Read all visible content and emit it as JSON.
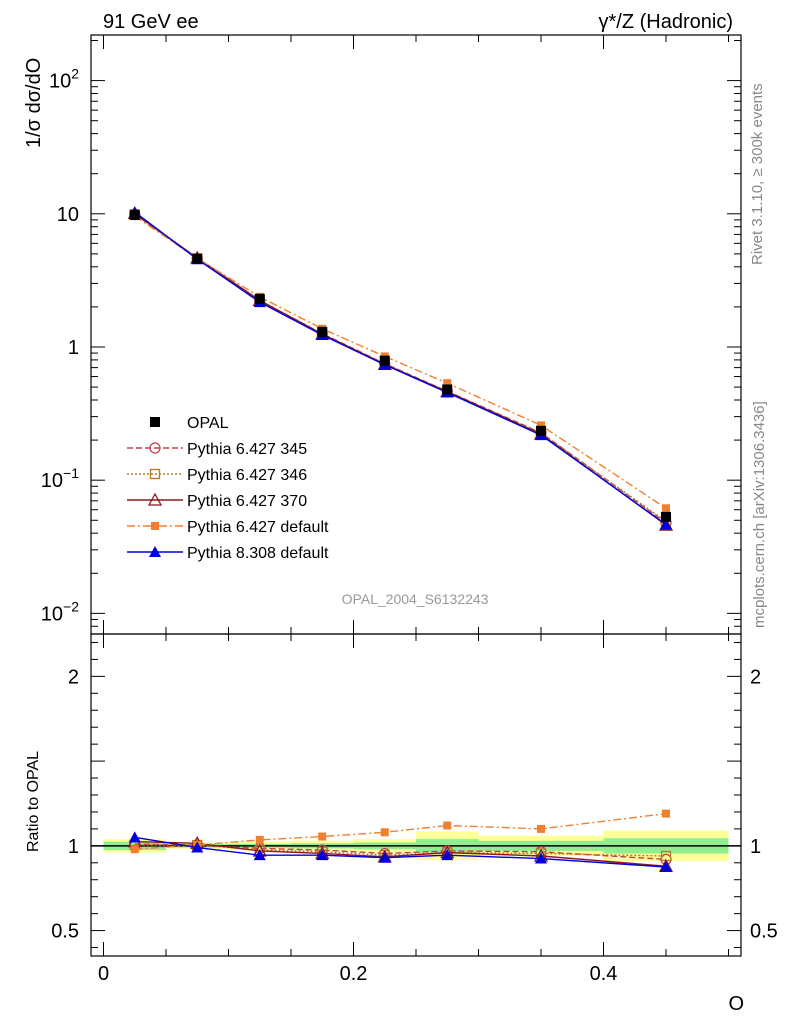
{
  "header": {
    "left": "91 GeV ee",
    "right": "γ*/Z (Hadronic)"
  },
  "side": {
    "rivet": "Rivet 3.1.10, ≥ 300k events",
    "mcplots": "mcplots.cern.ch [arXiv:1306.3436]"
  },
  "chart_data": [
    {
      "type": "line",
      "panel": "main",
      "ylabel": "1/σ dσ/dO",
      "yscale": "log",
      "ylim": [
        0.007,
        220
      ],
      "xlim": [
        -0.01,
        0.51
      ],
      "watermark": "OPAL_2004_S6132243",
      "yticks": [
        {
          "value": 100,
          "base": "10",
          "exp": "2"
        },
        {
          "value": 10,
          "label": "10"
        },
        {
          "value": 1,
          "label": "1"
        },
        {
          "value": 0.1,
          "base": "10",
          "exp": "−1"
        },
        {
          "value": 0.01,
          "base": "10",
          "exp": "−2"
        }
      ],
      "legend_position": "middle-left",
      "x": [
        0.025,
        0.075,
        0.125,
        0.175,
        0.225,
        0.275,
        0.35,
        0.45
      ],
      "series": [
        {
          "name": "OPAL",
          "color": "#000000",
          "marker": "square-filled",
          "line": "none",
          "values": [
            9.8,
            4.6,
            2.3,
            1.3,
            0.79,
            0.48,
            0.235,
            0.053
          ]
        },
        {
          "name": "Pythia 6.427 345",
          "color": "#c04050",
          "marker": "circle-open",
          "line": "dashed",
          "values": [
            9.95,
            4.62,
            2.23,
            1.26,
            0.75,
            0.465,
            0.227,
            0.048
          ]
        },
        {
          "name": "Pythia 6.427 346",
          "color": "#b8782a",
          "marker": "square-open",
          "line": "dotted",
          "values": [
            9.9,
            4.62,
            2.23,
            1.25,
            0.745,
            0.46,
            0.225,
            0.049
          ]
        },
        {
          "name": "Pythia 6.427 370",
          "color": "#8b1a1a",
          "marker": "triangle-open",
          "line": "solid",
          "values": [
            10.05,
            4.66,
            2.24,
            1.25,
            0.74,
            0.462,
            0.222,
            0.046
          ]
        },
        {
          "name": "Pythia 6.427 default",
          "color": "#f08030",
          "marker": "square-small",
          "line": "dashdot",
          "values": [
            9.6,
            4.62,
            2.38,
            1.37,
            0.85,
            0.535,
            0.258,
            0.0615
          ]
        },
        {
          "name": "Pythia 8.308 default",
          "color": "#0000dd",
          "marker": "triangle-filled",
          "line": "solid",
          "values": [
            10.3,
            4.56,
            2.17,
            1.23,
            0.735,
            0.455,
            0.218,
            0.0465
          ]
        }
      ]
    },
    {
      "type": "line",
      "panel": "ratio",
      "ylabel": "Ratio to OPAL",
      "xlabel": "O",
      "ylim": [
        0.35,
        2.25
      ],
      "xlim": [
        -0.01,
        0.51
      ],
      "yticks": [
        {
          "value": 0.5,
          "label": "0.5"
        },
        {
          "value": 1,
          "label": "1"
        },
        {
          "value": 2,
          "label": "2"
        }
      ],
      "xticks": [
        {
          "value": 0,
          "label": "0"
        },
        {
          "value": 0.2,
          "label": "0.2"
        },
        {
          "value": 0.4,
          "label": "0.4"
        }
      ],
      "uncertainty_bands": [
        {
          "x0": 0.0,
          "x1": 0.05,
          "inner": 0.025,
          "outer": 0.04
        },
        {
          "x0": 0.05,
          "x1": 0.1,
          "inner": 0.01,
          "outer": 0.018
        },
        {
          "x0": 0.1,
          "x1": 0.15,
          "inner": 0.012,
          "outer": 0.025
        },
        {
          "x0": 0.15,
          "x1": 0.2,
          "inner": 0.015,
          "outer": 0.03
        },
        {
          "x0": 0.2,
          "x1": 0.25,
          "inner": 0.02,
          "outer": 0.04
        },
        {
          "x0": 0.25,
          "x1": 0.3,
          "inner": 0.04,
          "outer": 0.085
        },
        {
          "x0": 0.3,
          "x1": 0.4,
          "inner": 0.03,
          "outer": 0.06
        },
        {
          "x0": 0.4,
          "x1": 0.5,
          "inner": 0.045,
          "outer": 0.09
        }
      ],
      "band_colors": {
        "inner": "#90ee90",
        "outer": "#ffff99"
      },
      "x": [
        0.025,
        0.075,
        0.125,
        0.175,
        0.225,
        0.275,
        0.35,
        0.45
      ],
      "series": [
        {
          "name": "Pythia 6.427 345",
          "values": [
            1.01,
            1.005,
            0.985,
            0.975,
            0.955,
            0.97,
            0.965,
            0.92
          ]
        },
        {
          "name": "Pythia 6.427 346",
          "values": [
            1.005,
            1.005,
            0.975,
            0.965,
            0.945,
            0.96,
            0.955,
            0.94
          ]
        },
        {
          "name": "Pythia 6.427 370",
          "values": [
            1.025,
            1.015,
            0.97,
            0.955,
            0.935,
            0.96,
            0.94,
            0.88
          ]
        },
        {
          "name": "Pythia 6.427 default",
          "values": [
            0.98,
            1.005,
            1.035,
            1.055,
            1.08,
            1.12,
            1.1,
            1.19
          ]
        },
        {
          "name": "Pythia 8.308 default",
          "values": [
            1.05,
            0.99,
            0.945,
            0.945,
            0.93,
            0.945,
            0.925,
            0.875
          ]
        }
      ]
    }
  ]
}
